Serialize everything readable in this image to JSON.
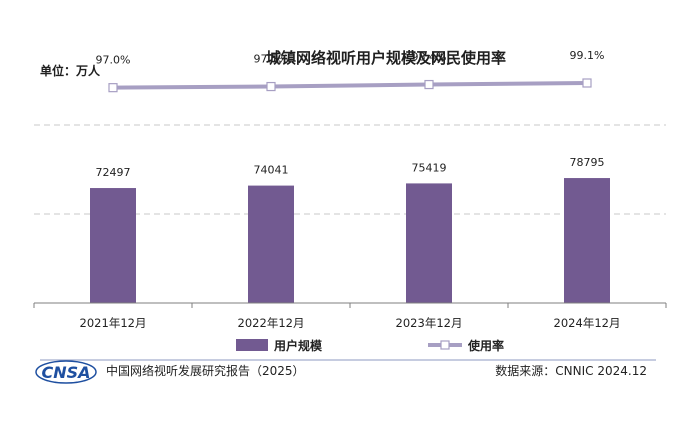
{
  "chart_data": {
    "type": "bar",
    "title": "城镇网络视听用户规模及网民使用率",
    "unit_label": "单位：万人",
    "categories": [
      "2021年12月",
      "2022年12月",
      "2023年12月",
      "2024年12月"
    ],
    "series": [
      {
        "name": "用户规模",
        "kind": "bar",
        "values": [
          72497,
          74041,
          75419,
          78795
        ],
        "labels": [
          "72497",
          "74041",
          "75419",
          "78795"
        ]
      },
      {
        "name": "使用率",
        "kind": "line",
        "values": [
          97.0,
          97.5,
          98.4,
          99.1
        ],
        "labels": [
          "97.0%",
          "97.5%",
          "98.4%",
          "99.1%"
        ]
      }
    ],
    "ylim_bar": [
      0,
      140000
    ],
    "ylim_line": [
      0,
      100
    ],
    "grid": true,
    "legend": "bottom"
  },
  "colors": {
    "bar": "#725a91",
    "line": "#a79fc3",
    "grid": "#c8c8c8",
    "axis": "#7f7f7f",
    "logo": "#1e4fa0"
  },
  "footer": {
    "logo": "CNSA",
    "report": "中国网络视听发展研究报告（2025）",
    "source": "数据来源：CNNIC  2024.12"
  }
}
